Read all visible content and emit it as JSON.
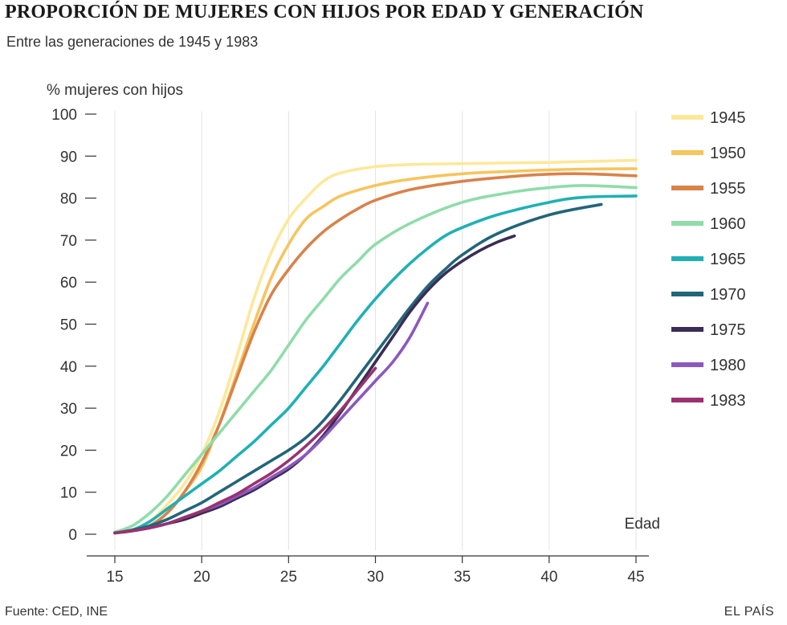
{
  "header": {
    "title": "PROPORCIÓN DE MUJERES CON HIJOS POR EDAD Y GENERACIÓN",
    "subtitle": "Entre las generaciones de 1945 y 1983"
  },
  "footer": {
    "source": "Fuente: CED, INE",
    "brand": "EL PAÍS"
  },
  "chart_data": {
    "type": "line",
    "title": "PROPORCIÓN DE MUJERES CON HIJOS POR EDAD Y GENERACIÓN",
    "subtitle": "Entre las generaciones de 1945 y 1983",
    "xlabel": "Edad",
    "ylabel": "% mujeres con hijos",
    "xlim": [
      15,
      45
    ],
    "ylim": [
      0,
      100
    ],
    "xticks": [
      15,
      20,
      25,
      30,
      35,
      40,
      45
    ],
    "yticks": [
      0,
      10,
      20,
      30,
      40,
      50,
      60,
      70,
      80,
      90,
      100
    ],
    "grid": "vertical",
    "legend": "right",
    "series": [
      {
        "name": "1945",
        "color": "#fde89a",
        "x": [
          15,
          16,
          17,
          18,
          19,
          20,
          21,
          22,
          23,
          24,
          25,
          26,
          27,
          28,
          30,
          32,
          35,
          38,
          40,
          42,
          45
        ],
        "y": [
          0.5,
          1,
          3,
          7,
          12,
          19,
          29,
          42,
          56,
          67,
          75,
          80,
          84,
          86,
          87.5,
          88,
          88.2,
          88.4,
          88.5,
          88.7,
          89
        ]
      },
      {
        "name": "1950",
        "color": "#f7c45d",
        "x": [
          15,
          16,
          17,
          18,
          19,
          20,
          21,
          22,
          23,
          24,
          25,
          26,
          27,
          28,
          30,
          32,
          35,
          38,
          40,
          42,
          45
        ],
        "y": [
          0.5,
          1,
          2,
          5,
          10,
          16,
          26,
          38,
          50,
          61,
          69,
          75,
          78,
          80.5,
          83,
          84.5,
          85.8,
          86.4,
          86.7,
          86.9,
          87
        ]
      },
      {
        "name": "1955",
        "color": "#d9824a",
        "x": [
          15,
          16,
          17,
          18,
          19,
          20,
          21,
          22,
          23,
          24,
          25,
          26,
          27,
          28,
          29,
          30,
          32,
          35,
          38,
          40,
          42,
          45
        ],
        "y": [
          0.3,
          0.8,
          2,
          5,
          10,
          17,
          26,
          37,
          48,
          57,
          63,
          68,
          72,
          75,
          77.5,
          79.5,
          82,
          84,
          85.2,
          85.7,
          85.8,
          85.3
        ]
      },
      {
        "name": "1960",
        "color": "#8fdcaa",
        "x": [
          15,
          16,
          17,
          18,
          19,
          20,
          21,
          22,
          23,
          24,
          25,
          26,
          27,
          28,
          29,
          30,
          32,
          35,
          38,
          40,
          42,
          45
        ],
        "y": [
          0.5,
          2,
          5,
          9,
          14,
          19,
          24,
          29,
          34,
          39,
          45,
          51,
          56,
          61,
          65,
          69,
          74,
          79,
          81.5,
          82.5,
          83,
          82.5
        ]
      },
      {
        "name": "1965",
        "color": "#1fb0b5",
        "x": [
          15,
          16,
          17,
          18,
          19,
          20,
          21,
          22,
          23,
          24,
          25,
          26,
          27,
          28,
          29,
          30,
          31,
          32,
          33,
          34,
          35,
          37,
          40,
          42,
          45
        ],
        "y": [
          0.3,
          1,
          3,
          6,
          9,
          12,
          15,
          18.5,
          22,
          26,
          30,
          35,
          40,
          45.5,
          51,
          56,
          60.5,
          64.5,
          68,
          71,
          73,
          76,
          79,
          80.2,
          80.5
        ]
      },
      {
        "name": "1970",
        "color": "#226579",
        "x": [
          15,
          16,
          17,
          18,
          19,
          20,
          21,
          22,
          23,
          24,
          25,
          26,
          27,
          28,
          29,
          30,
          31,
          32,
          33,
          34,
          35,
          37,
          40,
          43
        ],
        "y": [
          0.3,
          1,
          2,
          3.5,
          5.5,
          7.5,
          10,
          12.5,
          15,
          17.5,
          20,
          23,
          27,
          32,
          37.5,
          43,
          48.5,
          54,
          59,
          63,
          66.5,
          71.5,
          76,
          78.5
        ]
      },
      {
        "name": "1975",
        "color": "#3b2c55",
        "x": [
          15,
          16,
          17,
          18,
          19,
          20,
          21,
          22,
          23,
          24,
          25,
          26,
          27,
          28,
          29,
          30,
          31,
          32,
          33,
          34,
          35,
          36,
          37,
          38
        ],
        "y": [
          0.3,
          0.8,
          1.5,
          2.5,
          3.5,
          5,
          6.5,
          8.5,
          10.5,
          13,
          15.5,
          19,
          23.5,
          29,
          35,
          41,
          47,
          53,
          58,
          62,
          65,
          67.5,
          69.5,
          71
        ]
      },
      {
        "name": "1980",
        "color": "#8b59be",
        "x": [
          15,
          16,
          17,
          18,
          19,
          20,
          21,
          22,
          23,
          24,
          25,
          26,
          27,
          28,
          29,
          30,
          31,
          32,
          33
        ],
        "y": [
          0.3,
          0.8,
          1.5,
          2.5,
          4,
          5.5,
          7,
          9,
          11,
          13.5,
          16,
          19,
          23,
          27.5,
          32,
          36.5,
          41,
          47,
          55
        ]
      },
      {
        "name": "1983",
        "color": "#9a3270",
        "x": [
          15,
          16,
          17,
          18,
          19,
          20,
          21,
          22,
          23,
          24,
          25,
          26,
          27,
          28,
          29,
          30
        ],
        "y": [
          0.3,
          0.8,
          1.5,
          2.5,
          4,
          5.5,
          7.5,
          9.5,
          12,
          14.5,
          17.5,
          21,
          25,
          29.5,
          34.5,
          39.5
        ]
      }
    ]
  }
}
